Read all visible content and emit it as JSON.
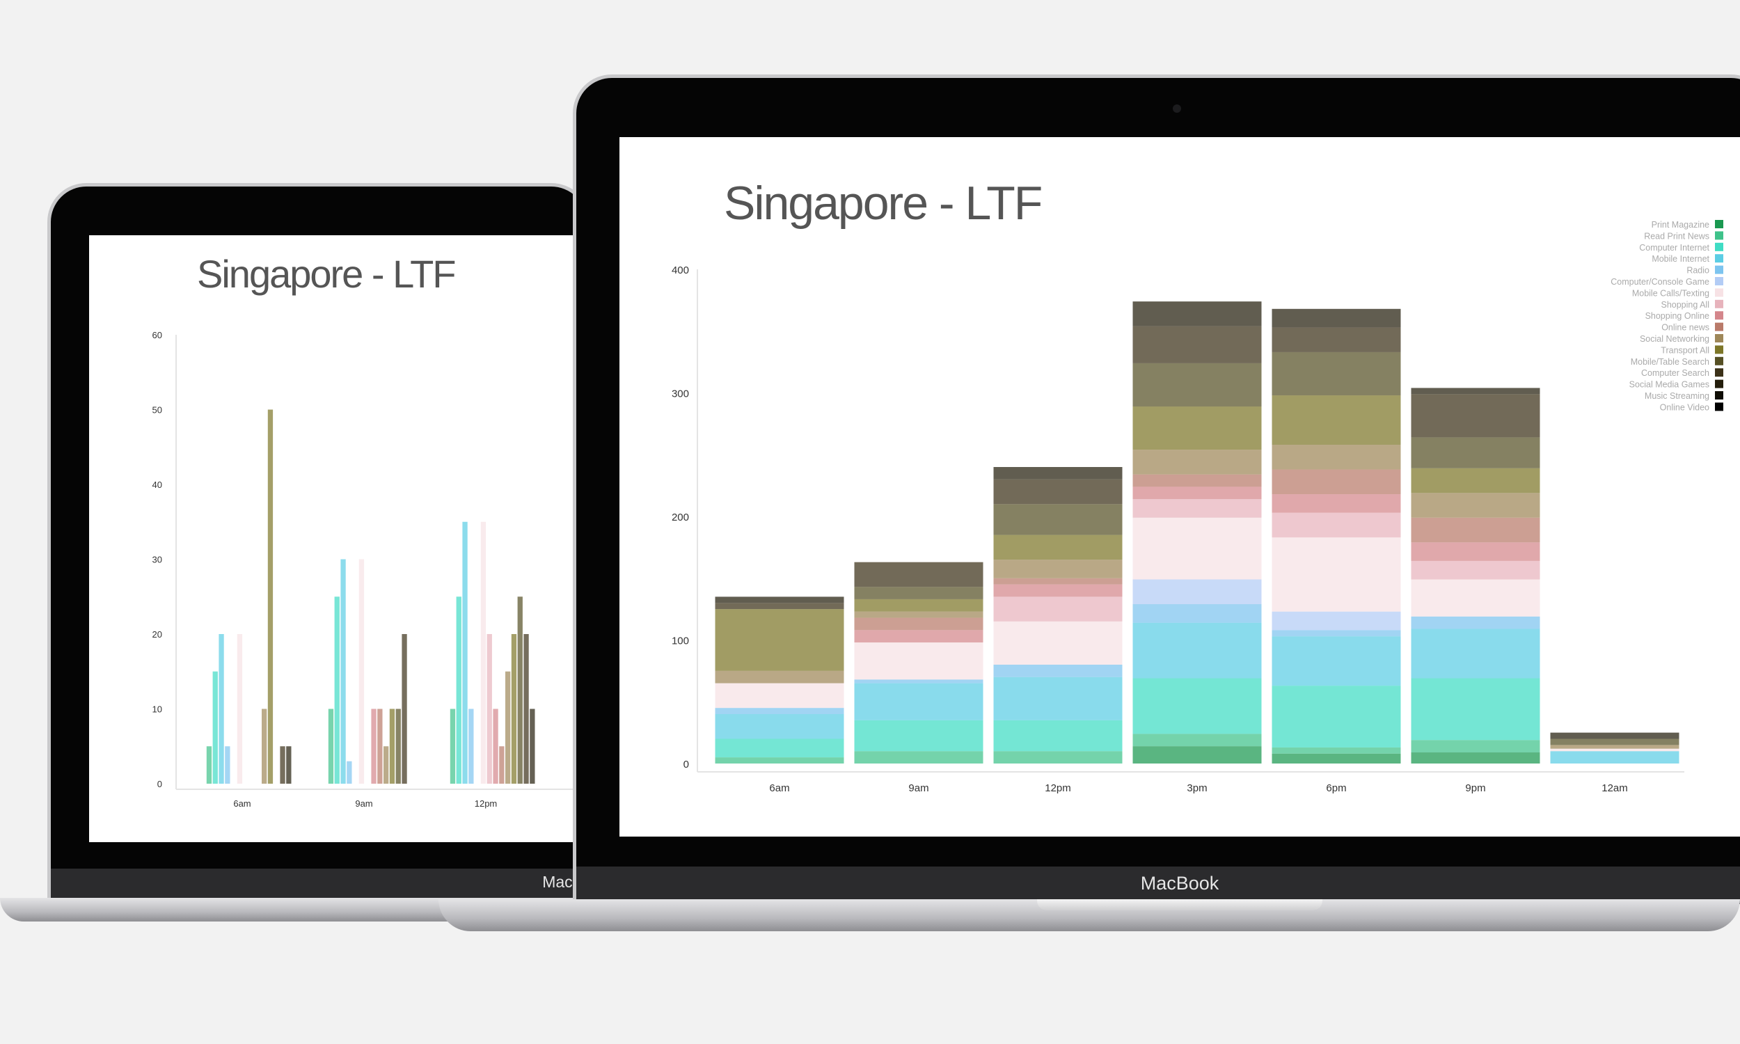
{
  "brand_label": "MacBook",
  "brand_label_back": "MacBo",
  "chart_data": [
    {
      "type": "bar",
      "title": "Singapore - LTF",
      "stacked": true,
      "categories": [
        "6am",
        "9am",
        "12pm",
        "3pm",
        "6pm",
        "9pm",
        "12am"
      ],
      "ylim": [
        0,
        400
      ],
      "yticks": [
        0,
        100,
        200,
        300,
        400
      ],
      "legend_position": "top-right",
      "series": [
        {
          "name": "Print Magazine",
          "color": "#1a9850",
          "values": [
            0,
            0,
            0,
            14,
            8,
            9,
            0
          ]
        },
        {
          "name": "Read Print News",
          "color": "#3fc28a",
          "values": [
            5,
            10,
            10,
            10,
            5,
            10,
            0
          ]
        },
        {
          "name": "Computer Internet",
          "color": "#3fdcc4",
          "values": [
            15,
            25,
            25,
            45,
            50,
            50,
            0
          ]
        },
        {
          "name": "Mobile Internet",
          "color": "#5bcde4",
          "values": [
            20,
            30,
            35,
            45,
            40,
            40,
            10
          ]
        },
        {
          "name": "Radio",
          "color": "#7dc4ef",
          "values": [
            5,
            3,
            10,
            15,
            5,
            10,
            0
          ]
        },
        {
          "name": "Computer/Console Game",
          "color": "#b3ccf5",
          "values": [
            0,
            0,
            0,
            20,
            15,
            0,
            0
          ]
        },
        {
          "name": "Mobile Calls/Texting",
          "color": "#f7e2e5",
          "values": [
            20,
            30,
            35,
            50,
            60,
            30,
            2
          ]
        },
        {
          "name": "Shopping All",
          "color": "#e7b3bc",
          "values": [
            0,
            0,
            20,
            15,
            20,
            15,
            0
          ]
        },
        {
          "name": "Shopping Online",
          "color": "#d4868b",
          "values": [
            0,
            10,
            10,
            10,
            15,
            15,
            0
          ]
        },
        {
          "name": "Online news",
          "color": "#b97a69",
          "values": [
            0,
            10,
            5,
            10,
            20,
            20,
            0
          ]
        },
        {
          "name": "Social Networking",
          "color": "#9e8758",
          "values": [
            10,
            5,
            15,
            20,
            20,
            20,
            3
          ]
        },
        {
          "name": "Transport All",
          "color": "#7d7628",
          "values": [
            50,
            10,
            20,
            35,
            40,
            20,
            0
          ]
        },
        {
          "name": "Mobile/Table Search",
          "color": "#565025",
          "values": [
            0,
            10,
            25,
            35,
            35,
            25,
            5
          ]
        },
        {
          "name": "Computer Search",
          "color": "#3c3118",
          "values": [
            5,
            20,
            20,
            30,
            20,
            35,
            0
          ]
        },
        {
          "name": "Social Media Games",
          "color": "#241e0c",
          "values": [
            5,
            0,
            10,
            20,
            15,
            5,
            5
          ]
        },
        {
          "name": "Music Streaming",
          "color": "#0f0d05",
          "values": [
            0,
            0,
            0,
            0,
            0,
            0,
            0
          ]
        },
        {
          "name": "Online Video",
          "color": "#000000",
          "values": [
            0,
            0,
            0,
            0,
            0,
            0,
            0
          ]
        }
      ]
    },
    {
      "type": "bar",
      "title": "Singapore - LTF",
      "stacked": false,
      "categories": [
        "6am",
        "9am",
        "12pm"
      ],
      "ylim": [
        0,
        60
      ],
      "yticks": [
        0,
        10,
        20,
        30,
        40,
        50,
        60
      ],
      "series_ref": "same series as the stacked chart (grouped bars)"
    }
  ]
}
